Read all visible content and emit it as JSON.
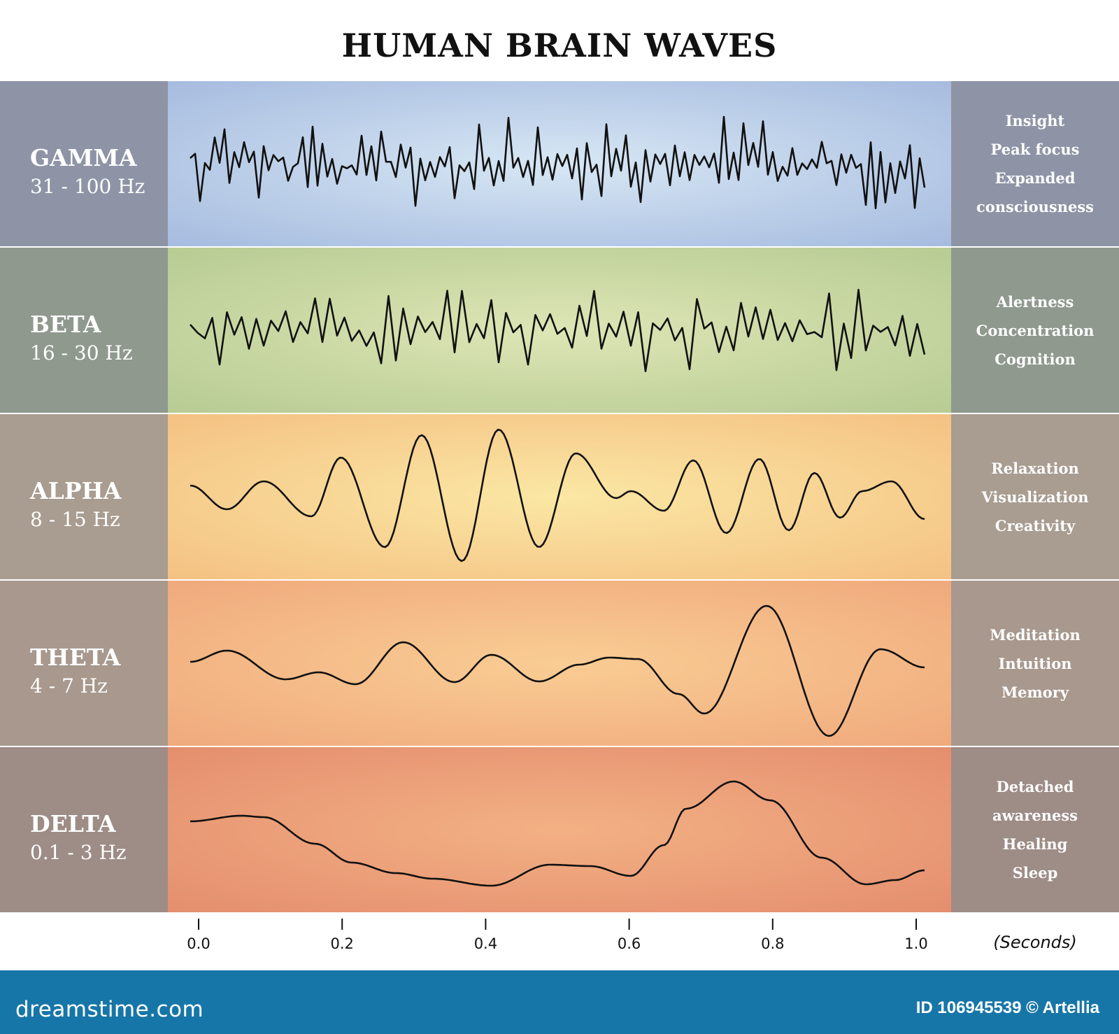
{
  "title": "HUMAN BRAIN WAVES",
  "bands": [
    {
      "name": "GAMMA",
      "frequency": "31 - 100 Hz",
      "effects": [
        "Insight",
        "Peak focus",
        "Expanded",
        "consciousness"
      ],
      "left_color": "#8e94a6",
      "right_color": "#8e94a6",
      "bg_center": "#d7e7f4",
      "bg_edge": "#a6bbdf",
      "wave_kind": "gamma"
    },
    {
      "name": "BETA",
      "frequency": "16 - 30 Hz",
      "effects": [
        "Alertness",
        "Concentration",
        "Cognition"
      ],
      "left_color": "#8f998e",
      "right_color": "#8f998e",
      "bg_center": "#dde6b5",
      "bg_edge": "#b7cb93",
      "wave_kind": "beta"
    },
    {
      "name": "ALPHA",
      "frequency": "8 - 15 Hz",
      "effects": [
        "Relaxation",
        "Visualization",
        "Creativity"
      ],
      "left_color": "#a99c90",
      "right_color": "#a99c90",
      "bg_center": "#fbe7a4",
      "bg_edge": "#f4c183",
      "wave_kind": "alpha"
    },
    {
      "name": "THETA",
      "frequency": "4 - 7 Hz",
      "effects": [
        "Meditation",
        "Intuition",
        "Memory"
      ],
      "left_color": "#a8988d",
      "right_color": "#a8988d",
      "bg_center": "#f9cd94",
      "bg_edge": "#f0a97c",
      "wave_kind": "theta"
    },
    {
      "name": "DELTA",
      "frequency": "0.1 - 3 Hz",
      "effects": [
        "Detached",
        "awareness",
        "Healing",
        "Sleep"
      ],
      "left_color": "#9e8c86",
      "right_color": "#9e8c86",
      "bg_center": "#f3b184",
      "bg_edge": "#e48e6e",
      "wave_kind": "delta"
    }
  ],
  "axis": {
    "ticks": [
      "0.0",
      "0.2",
      "0.4",
      "0.6",
      "0.8",
      "1.0"
    ],
    "unit": "(Seconds)"
  },
  "footer": {
    "brand": "dreamstime.com",
    "credit": "ID 106945539 © Artellia",
    "color": "#1776a8"
  }
}
